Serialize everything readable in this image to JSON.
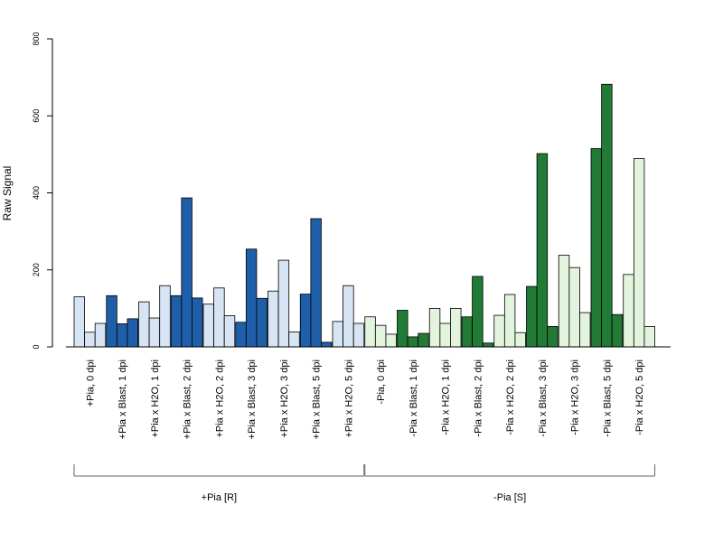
{
  "chart_data": {
    "type": "bar",
    "ylabel": "Raw Signal",
    "ylim": [
      0,
      800
    ],
    "yticks": [
      0,
      200,
      400,
      600,
      800
    ],
    "grid": false,
    "colors": {
      "r_light": "#d6e4f3",
      "r_dark": "#1f5ea8",
      "s_light": "#e2f4dd",
      "s_dark": "#217a35",
      "stroke": "#000000"
    },
    "categories": [
      {
        "label": "+Pia, 0 dpi",
        "values": [
          130,
          38,
          61
        ],
        "color": "r_light"
      },
      {
        "label": "+Pia x Blast, 1 dpi",
        "values": [
          133,
          60,
          73
        ],
        "color": "r_dark"
      },
      {
        "label": "+Pia x H2O, 1 dpi",
        "values": [
          117,
          75,
          159
        ],
        "color": "r_light"
      },
      {
        "label": "+Pia x Blast, 2 dpi",
        "values": [
          133,
          387,
          127
        ],
        "color": "r_dark"
      },
      {
        "label": "+Pia x H2O, 2 dpi",
        "values": [
          111,
          153,
          81
        ],
        "color": "r_light"
      },
      {
        "label": "+Pia x Blast, 3 dpi",
        "values": [
          64,
          254,
          126
        ],
        "color": "r_dark"
      },
      {
        "label": "+Pia x H2O, 3 dpi",
        "values": [
          145,
          225,
          39
        ],
        "color": "r_light"
      },
      {
        "label": "+Pia x Blast, 5 dpi",
        "values": [
          137,
          333,
          12
        ],
        "color": "r_dark"
      },
      {
        "label": "+Pia x H2O, 5 dpi",
        "values": [
          66,
          159,
          61
        ],
        "color": "r_light"
      },
      {
        "label": "-Pia, 0 dpi",
        "values": [
          78,
          56,
          33
        ],
        "color": "s_light"
      },
      {
        "label": "-Pia x Blast, 1 dpi",
        "values": [
          95,
          26,
          35
        ],
        "color": "s_dark"
      },
      {
        "label": "-Pia x H2O, 1 dpi",
        "values": [
          100,
          61,
          100
        ],
        "color": "s_light"
      },
      {
        "label": "-Pia x Blast, 2 dpi",
        "values": [
          78,
          183,
          10
        ],
        "color": "s_dark"
      },
      {
        "label": "-Pia x H2O, 2 dpi",
        "values": [
          82,
          136,
          37
        ],
        "color": "s_light"
      },
      {
        "label": "-Pia x Blast, 3 dpi",
        "values": [
          157,
          502,
          53
        ],
        "color": "s_dark"
      },
      {
        "label": "-Pia x H2O, 3 dpi",
        "values": [
          238,
          206,
          89
        ],
        "color": "s_light"
      },
      {
        "label": "-Pia x Blast, 5 dpi",
        "values": [
          515,
          682,
          84
        ],
        "color": "s_dark"
      },
      {
        "label": "-Pia x H2O, 5 dpi",
        "values": [
          188,
          489,
          53
        ],
        "color": "s_light"
      }
    ],
    "groups": [
      {
        "label": "+Pia [R]",
        "from": 0,
        "to": 8
      },
      {
        "label": "-Pia [S]",
        "from": 9,
        "to": 17
      }
    ]
  }
}
